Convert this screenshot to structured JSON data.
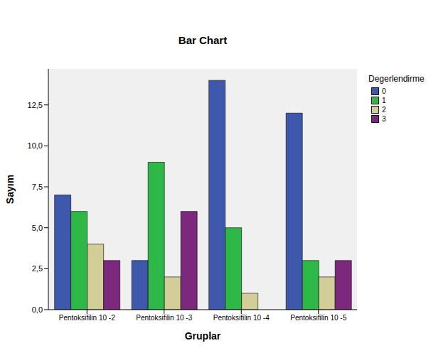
{
  "chart_data": {
    "type": "bar",
    "title": "Bar Chart",
    "x_label": "Gruplar",
    "y_label": "Sayım",
    "legend_title": "Degerlendirme",
    "legend": "right",
    "grid": false,
    "categories": [
      "Pentoksifilin 10 -2",
      "Pentoksifilin 10 -3",
      "Pentoksifilin 10 -4",
      "Pentoksifilin 10 -5"
    ],
    "series": [
      {
        "name": "0",
        "color": "#3e58ac",
        "values": [
          7,
          3,
          14,
          12
        ]
      },
      {
        "name": "1",
        "color": "#2eb848",
        "values": [
          6,
          9,
          5,
          3
        ]
      },
      {
        "name": "2",
        "color": "#d3ce97",
        "values": [
          4,
          2,
          1,
          2
        ]
      },
      {
        "name": "3",
        "color": "#7c287d",
        "values": [
          3,
          6,
          0,
          3
        ]
      }
    ],
    "ylim": [
      0,
      14.7
    ],
    "yticks": [
      {
        "value": 0,
        "label": "0,0"
      },
      {
        "value": 2.5,
        "label": "2,5"
      },
      {
        "value": 5,
        "label": "5,0"
      },
      {
        "value": 7.5,
        "label": "7,5"
      },
      {
        "value": 10,
        "label": "10,0"
      },
      {
        "value": 12.5,
        "label": "12,5"
      }
    ]
  }
}
